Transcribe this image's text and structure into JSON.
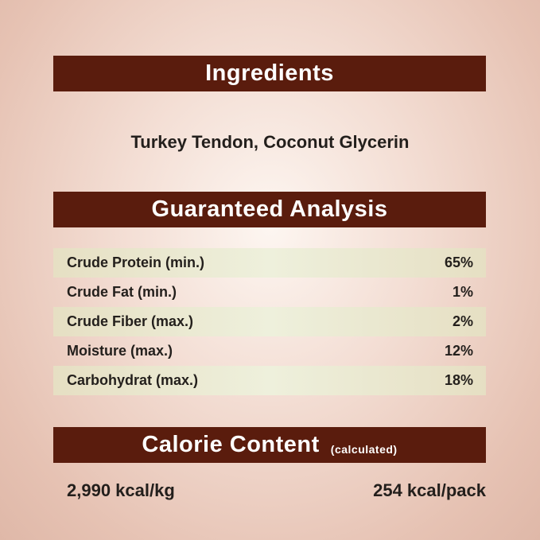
{
  "ingredients": {
    "title": "Ingredients",
    "text": "Turkey Tendon, Coconut Glycerin"
  },
  "analysis": {
    "title": "Guaranteed Analysis",
    "rows": [
      {
        "label": "Crude Protein (min.)",
        "value": "65%"
      },
      {
        "label": "Crude Fat (min.)",
        "value": "1%"
      },
      {
        "label": "Crude Fiber (max.)",
        "value": "2%"
      },
      {
        "label": "Moisture (max.)",
        "value": "12%"
      },
      {
        "label": "Carbohydrat (max.)",
        "value": "18%"
      }
    ]
  },
  "calorie": {
    "title": "Calorie Content",
    "subtitle": "(calculated)",
    "per_kg": "2,990 kcal/kg",
    "per_pack": "254 kcal/pack"
  },
  "colors": {
    "header": "#5a1c0d",
    "band": "#e6dfc3"
  }
}
